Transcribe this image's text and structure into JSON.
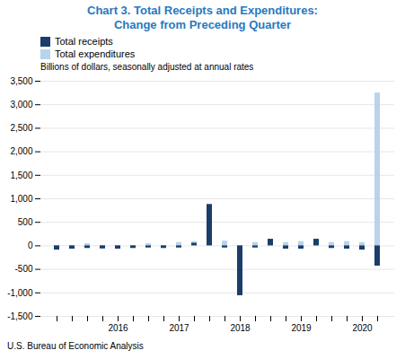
{
  "chart_data": {
    "type": "bar",
    "title": "Chart 3. Total Receipts and Expenditures:\nChange from Preceding Quarter",
    "subtitle": "Billions of dollars, seasonally adjusted at annual rates",
    "caption": "U.S. Bureau of Economic Analysis",
    "categories": [
      null,
      null,
      null,
      null,
      "2016",
      null,
      null,
      null,
      "2017",
      null,
      null,
      null,
      "2018",
      null,
      null,
      null,
      "2019",
      null,
      null,
      null,
      "2020",
      null
    ],
    "series": [
      {
        "name": "Total receipts",
        "color": "#1a3d6b",
        "values": [
          -90,
          -70,
          -55,
          -65,
          -70,
          -55,
          -45,
          -55,
          -45,
          55,
          880,
          -45,
          -1060,
          -45,
          140,
          -70,
          -70,
          140,
          -55,
          -70,
          -90,
          -430
        ]
      },
      {
        "name": "Total expenditures",
        "color": "#b8d4ea",
        "values": [
          -70,
          -55,
          45,
          -55,
          -55,
          -45,
          45,
          -45,
          70,
          90,
          70,
          100,
          -90,
          70,
          90,
          70,
          90,
          90,
          70,
          90,
          70,
          3250
        ]
      }
    ],
    "ylim": [
      -1500,
      3500
    ],
    "yticks": [
      {
        "value": -1500,
        "label": "-1,500"
      },
      {
        "value": -1000,
        "label": "-1,000"
      },
      -500,
      0,
      500,
      {
        "value": 1000,
        "label": "1,000"
      },
      {
        "value": 1500,
        "label": "1,500"
      },
      {
        "value": 2000,
        "label": "2,000"
      },
      {
        "value": 2500,
        "label": "2,500"
      },
      {
        "value": 3000,
        "label": "3,000"
      },
      {
        "value": 3500,
        "label": "3,500"
      }
    ],
    "grid": true,
    "legend": "upper left",
    "stacked": false
  }
}
